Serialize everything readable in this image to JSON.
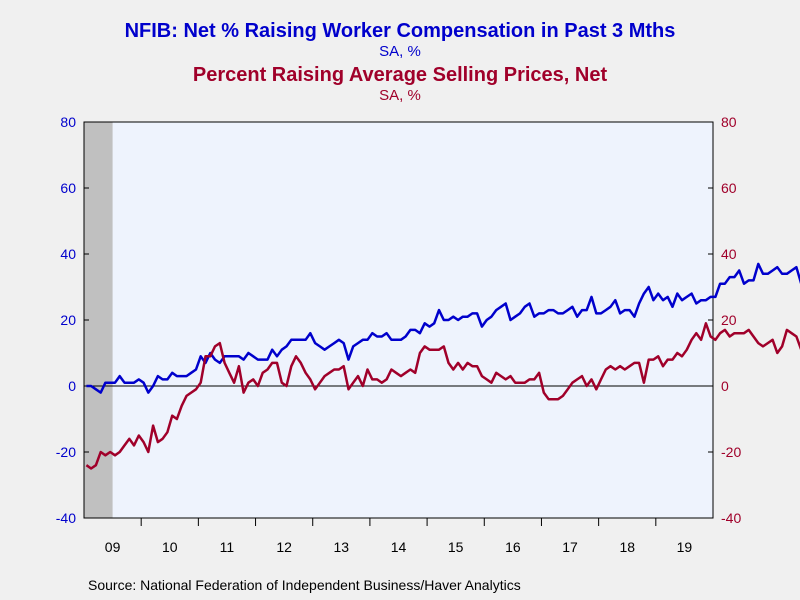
{
  "chart_data": {
    "type": "line",
    "title": "NFIB: Net % Raising Worker Compensation in Past 3 Mths",
    "title_color": "#0000cc",
    "subtitle": "SA, %",
    "title2": "Percent Raising Average Selling Prices, Net",
    "title2_color": "#a0002a",
    "subtitle2": "SA, %",
    "source": "Source:  National Federation of Independent Business/Haver Analytics",
    "ylim": [
      -40,
      80
    ],
    "y_ticks": [
      -40,
      -20,
      0,
      20,
      40,
      60,
      80
    ],
    "y_tick_labels": [
      "-40",
      "-20",
      "0",
      "20",
      "40",
      "60",
      "80"
    ],
    "x_labels": [
      "09",
      "10",
      "11",
      "12",
      "13",
      "14",
      "15",
      "16",
      "17",
      "18",
      "19"
    ],
    "x_start": "2009-01",
    "grid": false,
    "recession_shade": {
      "from": "2009-01",
      "to": "2009-06",
      "color": "#c0c0c0"
    },
    "series": [
      {
        "color": "#0000cc",
        "axis": "left",
        "values": [
          0,
          0,
          -1,
          -2,
          1,
          1,
          1,
          3,
          1,
          1,
          1,
          2,
          1,
          -2,
          0,
          3,
          2,
          2,
          4,
          3,
          3,
          3,
          4,
          5,
          9,
          7,
          10,
          8,
          7,
          9,
          9,
          9,
          9,
          8,
          10,
          9,
          8,
          8,
          8,
          11,
          9,
          11,
          12,
          14,
          14,
          14,
          14,
          16,
          13,
          12,
          11,
          12,
          13,
          14,
          13,
          8,
          12,
          13,
          14,
          14,
          16,
          15,
          15,
          16,
          14,
          14,
          14,
          15,
          17,
          17,
          16,
          19,
          18,
          19,
          23,
          20,
          20,
          21,
          20,
          21,
          21,
          22,
          22,
          18,
          20,
          21,
          23,
          24,
          25,
          20,
          21,
          22,
          24,
          25,
          21,
          22,
          22,
          23,
          23,
          22,
          22,
          23,
          24,
          21,
          23,
          23,
          27,
          22,
          22,
          23,
          24,
          26,
          22,
          23,
          23,
          21,
          25,
          28,
          30,
          26,
          28,
          26,
          27,
          24,
          28,
          26,
          27,
          28,
          25,
          26,
          26,
          27,
          27,
          31,
          31,
          33,
          33,
          35,
          31,
          32,
          32,
          37,
          34,
          34,
          35,
          36,
          34,
          34,
          35,
          36,
          31,
          33,
          34,
          34,
          28,
          29,
          32,
          29,
          29,
          30,
          30,
          29,
          30,
          36,
          36,
          31
        ]
      },
      {
        "color": "#a0002a",
        "axis": "right",
        "values": [
          -24,
          -25,
          -24,
          -20,
          -21,
          -20,
          -21,
          -20,
          -18,
          -16,
          -18,
          -15,
          -17,
          -20,
          -12,
          -17,
          -16,
          -14,
          -9,
          -10,
          -6,
          -3,
          -2,
          -1,
          1,
          9,
          9,
          12,
          13,
          7,
          4,
          1,
          6,
          -2,
          1,
          2,
          0,
          4,
          5,
          7,
          7,
          1,
          0,
          6,
          9,
          7,
          4,
          2,
          -1,
          1,
          3,
          4,
          5,
          5,
          6,
          -1,
          1,
          3,
          0,
          5,
          2,
          2,
          1,
          2,
          5,
          4,
          3,
          4,
          5,
          4,
          10,
          12,
          11,
          11,
          11,
          12,
          7,
          5,
          7,
          5,
          7,
          6,
          6,
          3,
          2,
          1,
          4,
          3,
          2,
          3,
          1,
          1,
          1,
          2,
          2,
          4,
          -2,
          -4,
          -4,
          -4,
          -3,
          -1,
          1,
          2,
          3,
          0,
          2,
          -1,
          2,
          5,
          6,
          5,
          6,
          5,
          6,
          7,
          7,
          1,
          8,
          8,
          9,
          6,
          8,
          8,
          10,
          9,
          11,
          14,
          16,
          14,
          19,
          15,
          14,
          16,
          17,
          15,
          16,
          16,
          16,
          17,
          15,
          13,
          12,
          13,
          14,
          10,
          12,
          17,
          16,
          15,
          11,
          8,
          10,
          11,
          12,
          14,
          15,
          15,
          11,
          6
        ]
      }
    ]
  }
}
